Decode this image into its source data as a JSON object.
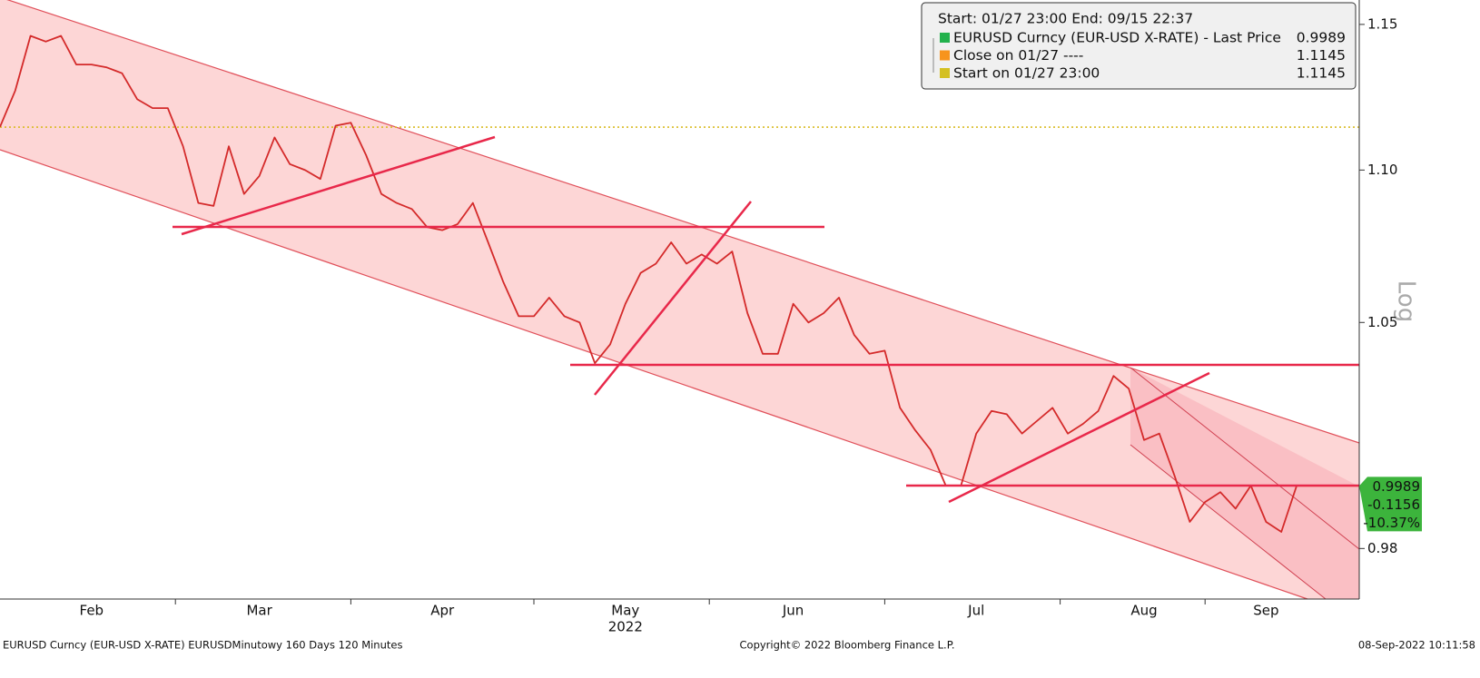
{
  "chart_data": {
    "type": "line",
    "legend_title": "Start: 01/27 23:00 End: 09/15 22:37",
    "categories": [
      null,
      null,
      null,
      null,
      null,
      null,
      "Feb",
      null,
      null,
      null,
      null,
      null,
      null,
      null,
      null,
      null,
      null,
      "Mar",
      null,
      null,
      null,
      null,
      null,
      null,
      null,
      null,
      null,
      null,
      null,
      "Apr",
      null,
      null,
      null,
      null,
      null,
      null,
      null,
      null,
      null,
      null,
      null,
      "May",
      null,
      null,
      null,
      null,
      null,
      null,
      null,
      null,
      null,
      null,
      "Jun",
      null,
      null,
      null,
      null,
      null,
      null,
      null,
      null,
      null,
      null,
      null,
      "Jul",
      null,
      null,
      null,
      null,
      null,
      null,
      null,
      null,
      null,
      null,
      "Aug",
      null,
      null,
      null,
      null,
      null,
      null,
      null,
      "Sep",
      null,
      null
    ],
    "year_label": "2022",
    "series": [
      {
        "name": "EURUSD Curncy (EUR-USD X-RATE) - Last Price",
        "color": "#22b14c",
        "line_color": "#d42a2a",
        "last_value": 0.9989,
        "values": [
          1.1146,
          1.127,
          1.146,
          1.144,
          1.146,
          1.136,
          1.136,
          1.135,
          1.133,
          1.124,
          1.121,
          1.121,
          1.108,
          1.089,
          1.088,
          1.108,
          1.092,
          1.098,
          1.111,
          1.102,
          1.1,
          1.097,
          1.115,
          1.116,
          1.105,
          1.092,
          1.089,
          1.087,
          1.081,
          1.08,
          1.082,
          1.089,
          1.076,
          1.063,
          1.052,
          1.052,
          1.058,
          1.052,
          1.05,
          1.037,
          1.043,
          1.056,
          1.066,
          1.069,
          1.076,
          1.069,
          1.072,
          1.069,
          1.073,
          1.053,
          1.04,
          1.04,
          1.056,
          1.05,
          1.053,
          1.058,
          1.046,
          1.04,
          1.041,
          1.023,
          1.016,
          1.01,
          0.999,
          0.999,
          1.015,
          1.022,
          1.021,
          1.015,
          1.019,
          1.023,
          1.015,
          1.018,
          1.022,
          1.033,
          1.029,
          1.013,
          1.015,
          1.002,
          0.988,
          0.994,
          0.997,
          0.992,
          0.999,
          0.988,
          0.985,
          0.9989
        ]
      }
    ],
    "reference_lines": [
      {
        "name": "Close on 01/27 ----",
        "color": "#f7941d",
        "value": 1.1145
      },
      {
        "name": "Start on 01/27 23:00",
        "color": "#d4c021",
        "value": 1.1145
      }
    ],
    "price_tag": [
      0.9989,
      -0.1156,
      {
        "value": -10.37,
        "label": "-10.37%"
      }
    ],
    "price_tag_color": "#3cb43c",
    "log_scale": true,
    "scale_label": "Log",
    "ylim": [
      0.965,
      1.1586
    ],
    "yticks": [
      1.15,
      {
        "value": 1.1,
        "label": "1.10"
      },
      1.05,
      0.98
    ],
    "footer_left": "EURUSD Curncy (EUR-USD X-RATE) EURUSDMinutowy 160 Days 120 Minutes",
    "footer_center": "Copyright© 2022 Bloomberg Finance L.P.",
    "footer_right": "08-Sep-2022 10:11:58"
  }
}
